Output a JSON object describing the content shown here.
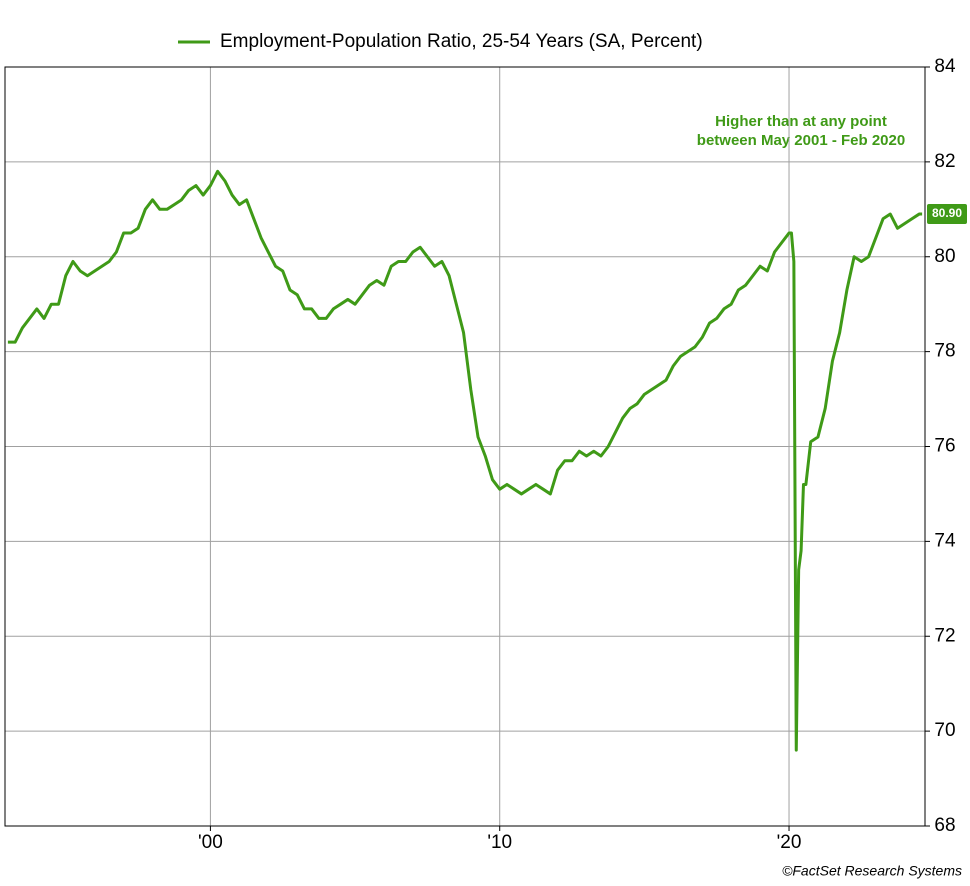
{
  "chart_data": {
    "type": "line",
    "legend_label": "Employment-Population Ratio, 25-54 Years (SA, Percent)",
    "annotation": [
      "Higher than at any point",
      "between May 2001 - Feb 2020"
    ],
    "credit": "©FactSet Research Systems",
    "last_value_label": "80.90",
    "color": "#3f9a17",
    "grid": true,
    "xlim": [
      1992.9,
      2024.7
    ],
    "xticks": [
      {
        "value": 2000,
        "label": "'00"
      },
      {
        "value": 2010,
        "label": "'10"
      },
      {
        "value": 2020,
        "label": "'20"
      }
    ],
    "ylim": [
      68,
      84
    ],
    "yticks": [
      68,
      70,
      72,
      74,
      76,
      78,
      80,
      82,
      84
    ],
    "x": [
      1993,
      1993.25,
      1993.5,
      1993.75,
      1994,
      1994.25,
      1994.5,
      1994.75,
      1995,
      1995.25,
      1995.5,
      1995.75,
      1996,
      1996.25,
      1996.5,
      1996.75,
      1997,
      1997.25,
      1997.5,
      1997.75,
      1998,
      1998.25,
      1998.5,
      1998.75,
      1999,
      1999.25,
      1999.5,
      1999.75,
      2000,
      2000.25,
      2000.5,
      2000.75,
      2001,
      2001.25,
      2001.5,
      2001.75,
      2002,
      2002.25,
      2002.5,
      2002.75,
      2003,
      2003.25,
      2003.5,
      2003.75,
      2004,
      2004.25,
      2004.5,
      2004.75,
      2005,
      2005.25,
      2005.5,
      2005.75,
      2006,
      2006.25,
      2006.5,
      2006.75,
      2007,
      2007.25,
      2007.5,
      2007.75,
      2008,
      2008.25,
      2008.5,
      2008.75,
      2009,
      2009.25,
      2009.5,
      2009.75,
      2010,
      2010.25,
      2010.5,
      2010.75,
      2011,
      2011.25,
      2011.5,
      2011.75,
      2012,
      2012.25,
      2012.5,
      2012.75,
      2013,
      2013.25,
      2013.5,
      2013.75,
      2014,
      2014.25,
      2014.5,
      2014.75,
      2015,
      2015.25,
      2015.5,
      2015.75,
      2016,
      2016.25,
      2016.5,
      2016.75,
      2017,
      2017.25,
      2017.5,
      2017.75,
      2018,
      2018.25,
      2018.5,
      2018.75,
      2019,
      2019.25,
      2019.5,
      2019.75,
      2020,
      2020.083,
      2020.167,
      2020.25,
      2020.333,
      2020.417,
      2020.5,
      2020.583,
      2020.75,
      2021,
      2021.25,
      2021.5,
      2021.75,
      2022,
      2022.25,
      2022.5,
      2022.75,
      2023,
      2023.25,
      2023.5,
      2023.75,
      2024,
      2024.25,
      2024.5,
      2024.6
    ],
    "values": [
      78.2,
      78.2,
      78.5,
      78.7,
      78.9,
      78.7,
      79.0,
      79.0,
      79.6,
      79.9,
      79.7,
      79.6,
      79.7,
      79.8,
      79.9,
      80.1,
      80.5,
      80.5,
      80.6,
      81.0,
      81.2,
      81.0,
      81.0,
      81.1,
      81.2,
      81.4,
      81.5,
      81.3,
      81.5,
      81.8,
      81.6,
      81.3,
      81.1,
      81.2,
      80.8,
      80.4,
      80.1,
      79.8,
      79.7,
      79.3,
      79.2,
      78.9,
      78.9,
      78.7,
      78.7,
      78.9,
      79.0,
      79.1,
      79.0,
      79.2,
      79.4,
      79.5,
      79.4,
      79.8,
      79.9,
      79.9,
      80.1,
      80.2,
      80.0,
      79.8,
      79.9,
      79.6,
      79.0,
      78.4,
      77.2,
      76.2,
      75.8,
      75.3,
      75.1,
      75.2,
      75.1,
      75.0,
      75.1,
      75.2,
      75.1,
      75.0,
      75.5,
      75.7,
      75.7,
      75.9,
      75.8,
      75.9,
      75.8,
      76.0,
      76.3,
      76.6,
      76.8,
      76.9,
      77.1,
      77.2,
      77.3,
      77.4,
      77.7,
      77.9,
      78.0,
      78.1,
      78.3,
      78.6,
      78.7,
      78.9,
      79.0,
      79.3,
      79.4,
      79.6,
      79.8,
      79.7,
      80.1,
      80.3,
      80.5,
      80.5,
      79.9,
      69.6,
      73.4,
      73.8,
      75.2,
      75.2,
      76.1,
      76.2,
      76.8,
      77.8,
      78.4,
      79.3,
      80.0,
      79.9,
      80.0,
      80.4,
      80.8,
      80.9,
      80.6,
      80.7,
      80.8,
      80.9,
      80.9
    ]
  }
}
